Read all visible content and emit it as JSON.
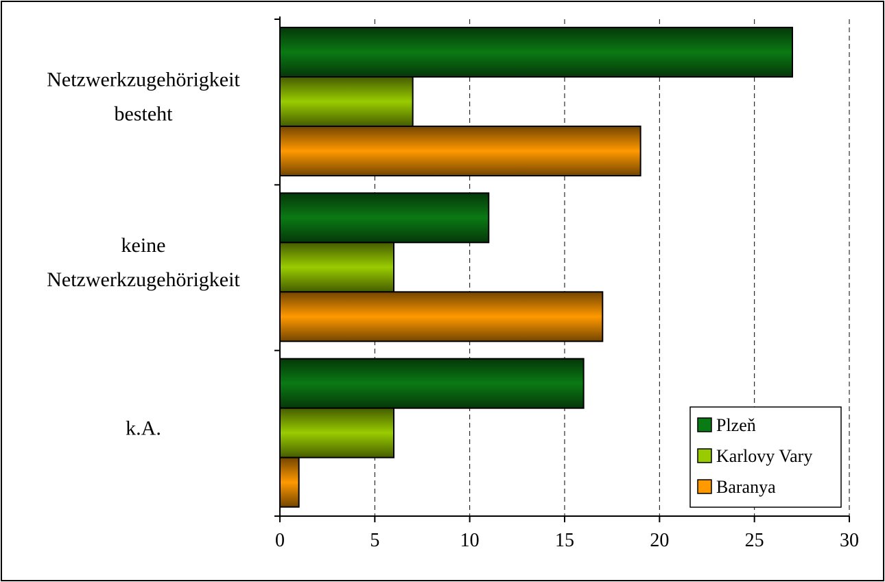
{
  "chart_data": {
    "type": "bar",
    "orientation": "horizontal",
    "categories": [
      [
        "Netzwerkzugehörigkeit",
        "besteht"
      ],
      [
        "keine",
        "Netzwerkzugehörigkeit"
      ],
      [
        "k.A."
      ]
    ],
    "series": [
      {
        "name": "Plzeň",
        "values": [
          27,
          11,
          16
        ],
        "color": "#0a7a14"
      },
      {
        "name": "Karlovy Vary",
        "values": [
          7,
          6,
          6
        ],
        "color": "#99cc00"
      },
      {
        "name": "Baranya",
        "values": [
          19,
          17,
          1
        ],
        "color": "#ff9900"
      }
    ],
    "xlim": [
      0,
      30
    ],
    "xticks": [
      "0",
      "5",
      "10",
      "15",
      "20",
      "25",
      "30"
    ],
    "grid": "vertical dashed",
    "legend_position": "bottom-right",
    "title": "",
    "xlabel": "",
    "ylabel": ""
  }
}
